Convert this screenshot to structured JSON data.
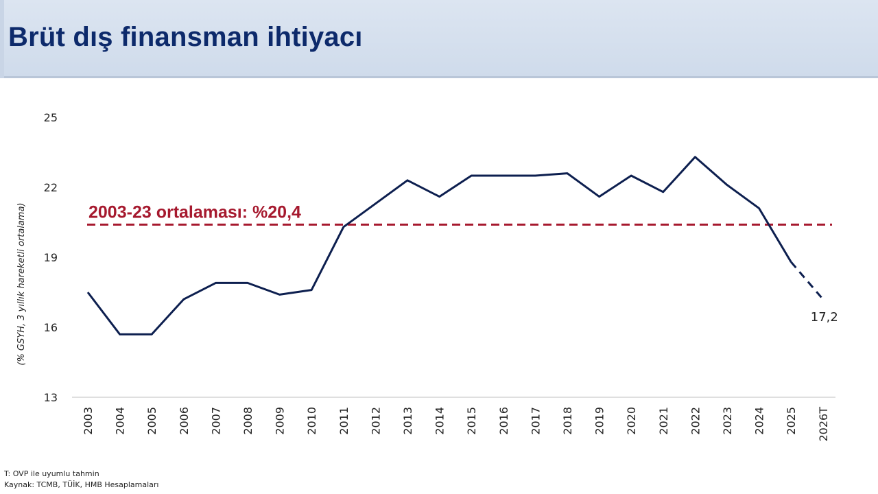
{
  "header": {
    "title": "Brüt dış finansman ihtiyacı"
  },
  "chart_data": {
    "type": "line",
    "ylabel": "(% GSYH, 3 yıllık hareketli ortalama)",
    "ylim": [
      13,
      25
    ],
    "yticks": [
      "13",
      "16",
      "19",
      "22",
      "25"
    ],
    "categories": [
      "2003",
      "2004",
      "2005",
      "2006",
      "2007",
      "2008",
      "2009",
      "2010",
      "2011",
      "2012",
      "2013",
      "2014",
      "2015",
      "2016",
      "2017",
      "2018",
      "2019",
      "2020",
      "2021",
      "2022",
      "2023",
      "2024",
      "2025",
      "2026T"
    ],
    "series": [
      {
        "values": [
          17.5,
          15.7,
          15.7,
          17.2,
          17.9,
          17.9,
          17.4,
          17.6,
          20.3,
          21.3,
          22.3,
          21.6,
          22.5,
          22.5,
          22.5,
          22.6,
          21.6,
          22.5,
          21.8,
          23.3,
          22.1,
          21.1,
          18.8,
          17.2
        ],
        "forecast_from_index": 22,
        "color": "#0d1f4f"
      }
    ],
    "reference_line": {
      "value": 20.4,
      "label": "2003-23 ortalaması: %20,4",
      "color": "#a6192e"
    },
    "annotations": [
      {
        "category": "2026T",
        "text": "17,2"
      }
    ],
    "grid": false
  },
  "footnotes": {
    "note": "T: OVP ile uyumlu tahmin",
    "source": "Kaynak: TCMB, TÜİK, HMB Hesaplamaları"
  }
}
